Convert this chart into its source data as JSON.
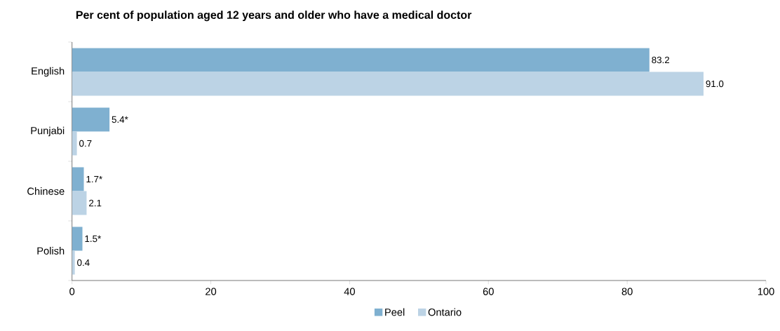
{
  "chart_data": {
    "type": "bar",
    "orientation": "horizontal",
    "title": "Per cent of population aged 12 years and older who have a medical doctor",
    "categories": [
      "English",
      "Punjabi",
      "Chinese",
      "Polish"
    ],
    "series": [
      {
        "name": "Peel",
        "color": "#7fb0d0",
        "values": [
          83.2,
          5.4,
          1.7,
          1.5
        ],
        "value_labels": [
          "83.2",
          "5.4*",
          "1.7*",
          "1.5*"
        ]
      },
      {
        "name": "Ontario",
        "color": "#bcd3e5",
        "values": [
          91.0,
          0.7,
          2.1,
          0.4
        ],
        "value_labels": [
          "91.0",
          "0.7",
          "2.1",
          "0.4"
        ]
      }
    ],
    "xlim": [
      0,
      100
    ],
    "xticks": [
      0,
      20,
      40,
      60,
      80,
      100
    ],
    "grid": false,
    "legend": "bottom"
  }
}
